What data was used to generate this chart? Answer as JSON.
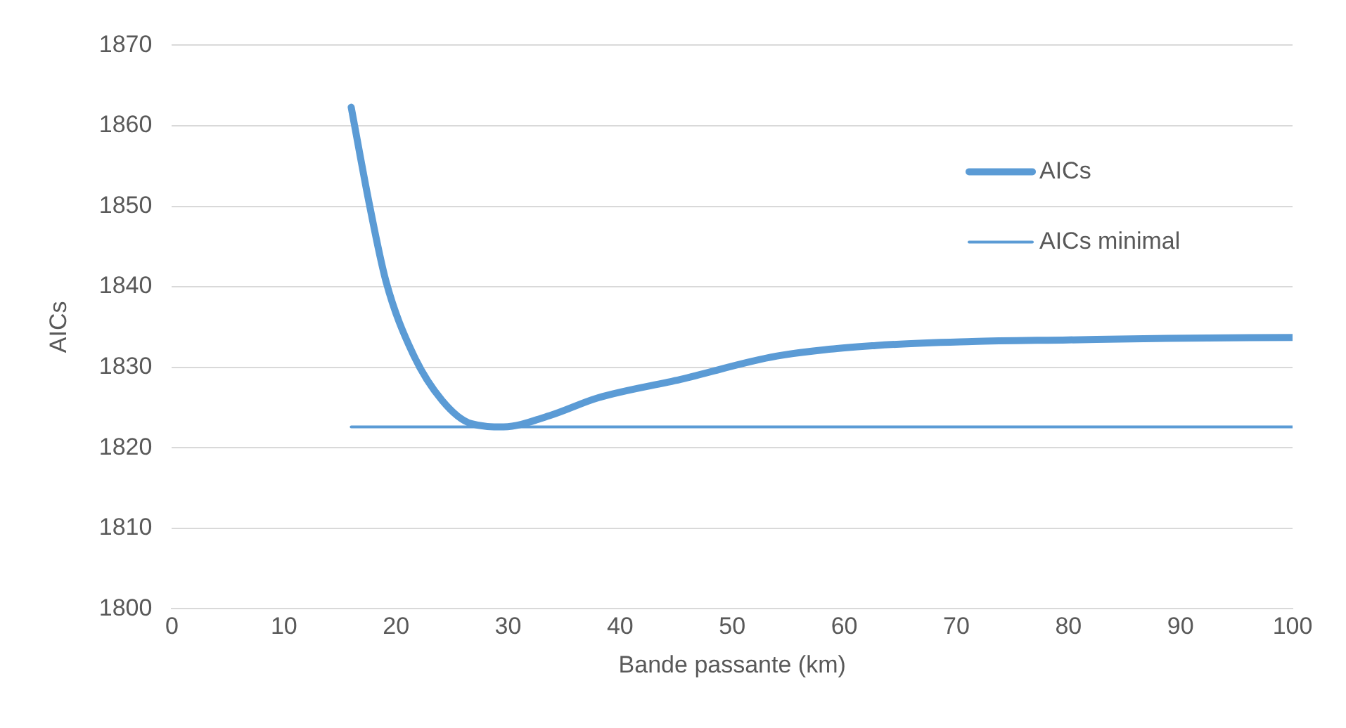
{
  "chart_data": {
    "type": "line",
    "xlabel": "Bande passante (km)",
    "ylabel": "AICs",
    "xlim": [
      0,
      100
    ],
    "xticks": [
      0,
      10,
      20,
      30,
      40,
      50,
      60,
      70,
      80,
      90,
      100
    ],
    "ylim": [
      1800,
      1870
    ],
    "yticks": [
      1800,
      1810,
      1820,
      1830,
      1840,
      1850,
      1860,
      1870
    ],
    "grid": "y",
    "legend": "top right",
    "marker": "none",
    "series": [
      {
        "name": "AICs",
        "color": "#5b9bd5",
        "x": [
          16,
          17.6,
          19.1,
          21.5,
          24.1,
          26.7,
          29.6,
          33.7,
          38,
          45.4,
          54,
          62.8,
          71.4,
          80,
          88.8,
          100
        ],
        "values": [
          1862.3,
          1850.4,
          1840.7,
          1831.7,
          1825.9,
          1823,
          1822.6,
          1824,
          1826.2,
          1828.5,
          1831.4,
          1832.7,
          1833.2,
          1833.4,
          1833.6,
          1833.7
        ]
      },
      {
        "name": "AICs minimal",
        "color": "#5b9bd5",
        "x": [
          16,
          100
        ],
        "values": [
          1822.6,
          1822.6
        ]
      }
    ]
  }
}
